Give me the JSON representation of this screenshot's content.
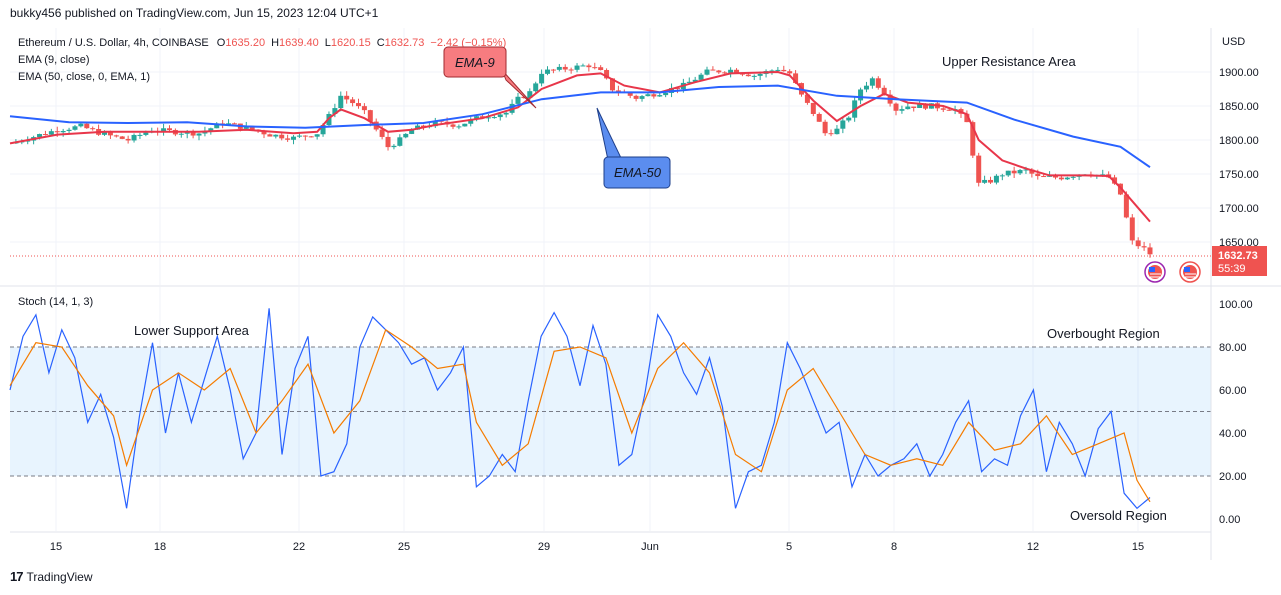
{
  "header": {
    "text": "bukky456 published on TradingView.com, Jun 15, 2023 12:04 UTC+1"
  },
  "legend": {
    "symbol": "Ethereum / U.S. Dollar, 4h, COINBASE",
    "o_label": "O",
    "o": "1635.20",
    "h_label": "H",
    "h": "1639.40",
    "l_label": "L",
    "l": "1620.15",
    "c_label": "C",
    "c": "1632.73",
    "change": "−2.42 (−0.15%)",
    "ema9": "EMA (9, close)",
    "ema50": "EMA (50, close, 0, EMA, 1)",
    "stoch": "Stoch (14, 1, 3)"
  },
  "price_axis": {
    "unit": "USD",
    "ticks": [
      "1900.00",
      "1850.00",
      "1800.00",
      "1750.00",
      "1700.00",
      "1650.00"
    ],
    "last_price": "1632.73",
    "countdown": "55:39"
  },
  "stoch_axis": {
    "ticks": [
      "100.00",
      "80.00",
      "60.00",
      "40.00",
      "20.00",
      "0.00"
    ]
  },
  "time_axis": {
    "labels": [
      "15",
      "18",
      "22",
      "25",
      "29",
      "Jun",
      "5",
      "8",
      "12",
      "15"
    ]
  },
  "annotations": {
    "ema9_callout": "EMA-9",
    "ema50_callout": "EMA-50",
    "upper_resistance": "Upper Resistance Area",
    "lower_support": "Lower Support Area",
    "overbought": "Overbought Region",
    "oversold": "Oversold Region"
  },
  "footer": {
    "brand": "TradingView",
    "logo": "17"
  },
  "colors": {
    "up": "#26a69a",
    "down": "#ef5350",
    "ema9": "#e8364a",
    "ema50": "#2962ff",
    "stoch_k": "#2962ff",
    "stoch_d": "#f57c00"
  },
  "chart_data": [
    {
      "type": "candlestick",
      "title": "Ethereum / U.S. Dollar, 4h, COINBASE",
      "x": [
        "15",
        "18",
        "22",
        "25",
        "29",
        "Jun",
        "5",
        "8",
        "12",
        "15"
      ],
      "ylabel": "USD",
      "ylim": [
        1610,
        1935
      ],
      "close_path": [
        [
          0,
          1795
        ],
        [
          2,
          1805
        ],
        [
          4,
          1815
        ],
        [
          6,
          1820
        ],
        [
          8,
          1808
        ],
        [
          10,
          1800
        ],
        [
          12,
          1815
        ],
        [
          14,
          1812
        ],
        [
          16,
          1810
        ],
        [
          18,
          1825
        ],
        [
          20,
          1818
        ],
        [
          22,
          1808
        ],
        [
          24,
          1803
        ],
        [
          26,
          1810
        ],
        [
          27,
          1835
        ],
        [
          28,
          1865
        ],
        [
          29,
          1855
        ],
        [
          30,
          1840
        ],
        [
          31,
          1815
        ],
        [
          32,
          1790
        ],
        [
          33,
          1800
        ],
        [
          34,
          1815
        ],
        [
          36,
          1825
        ],
        [
          38,
          1822
        ],
        [
          40,
          1835
        ],
        [
          42,
          1840
        ],
        [
          43,
          1860
        ],
        [
          44,
          1870
        ],
        [
          45,
          1900
        ],
        [
          47,
          1905
        ],
        [
          49,
          1910
        ],
        [
          50,
          1900
        ],
        [
          51,
          1875
        ],
        [
          53,
          1862
        ],
        [
          55,
          1870
        ],
        [
          57,
          1880
        ],
        [
          59,
          1900
        ],
        [
          61,
          1903
        ],
        [
          63,
          1895
        ],
        [
          65,
          1905
        ],
        [
          66,
          1898
        ],
        [
          67,
          1865
        ],
        [
          68,
          1840
        ],
        [
          69,
          1810
        ],
        [
          70,
          1815
        ],
        [
          71,
          1835
        ],
        [
          72,
          1875
        ],
        [
          73,
          1890
        ],
        [
          74,
          1870
        ],
        [
          75,
          1845
        ],
        [
          76,
          1850
        ],
        [
          78,
          1850
        ],
        [
          80,
          1845
        ],
        [
          81,
          1825
        ],
        [
          82,
          1735
        ],
        [
          83,
          1740
        ],
        [
          84,
          1750
        ],
        [
          86,
          1755
        ],
        [
          87,
          1745
        ],
        [
          89,
          1745
        ],
        [
          91,
          1752
        ],
        [
          93,
          1745
        ],
        [
          94,
          1720
        ],
        [
          95,
          1650
        ],
        [
          96,
          1640
        ],
        [
          96.5,
          1632.73
        ]
      ],
      "series": [
        {
          "name": "EMA (9, close)",
          "values": [
            [
              0,
              1795
            ],
            [
              4,
              1808
            ],
            [
              8,
              1812
            ],
            [
              12,
              1812
            ],
            [
              16,
              1812
            ],
            [
              20,
              1815
            ],
            [
              24,
              1810
            ],
            [
              26,
              1812
            ],
            [
              27,
              1832
            ],
            [
              28,
              1845
            ],
            [
              30,
              1832
            ],
            [
              32,
              1812
            ],
            [
              34,
              1815
            ],
            [
              36,
              1822
            ],
            [
              40,
              1832
            ],
            [
              43,
              1848
            ],
            [
              45,
              1875
            ],
            [
              48,
              1895
            ],
            [
              50,
              1898
            ],
            [
              52,
              1880
            ],
            [
              55,
              1870
            ],
            [
              58,
              1885
            ],
            [
              61,
              1898
            ],
            [
              65,
              1900
            ],
            [
              66,
              1895
            ],
            [
              68,
              1858
            ],
            [
              70,
              1828
            ],
            [
              72,
              1850
            ],
            [
              74,
              1868
            ],
            [
              76,
              1855
            ],
            [
              79,
              1850
            ],
            [
              81,
              1838
            ],
            [
              82,
              1800
            ],
            [
              84,
              1770
            ],
            [
              86,
              1758
            ],
            [
              88,
              1748
            ],
            [
              91,
              1748
            ],
            [
              93,
              1747
            ],
            [
              94,
              1730
            ],
            [
              96.5,
              1680
            ]
          ]
        },
        {
          "name": "EMA (50, close, 0, EMA, 1)",
          "values": [
            [
              0,
              1835
            ],
            [
              5,
              1826
            ],
            [
              10,
              1825
            ],
            [
              15,
              1826
            ],
            [
              20,
              1820
            ],
            [
              25,
              1818
            ],
            [
              30,
              1822
            ],
            [
              35,
              1825
            ],
            [
              40,
              1838
            ],
            [
              45,
              1860
            ],
            [
              50,
              1870
            ],
            [
              55,
              1870
            ],
            [
              60,
              1878
            ],
            [
              65,
              1880
            ],
            [
              70,
              1865
            ],
            [
              75,
              1860
            ],
            [
              81,
              1855
            ],
            [
              85,
              1830
            ],
            [
              90,
              1805
            ],
            [
              94,
              1790
            ],
            [
              96.5,
              1760
            ]
          ]
        }
      ]
    },
    {
      "type": "line",
      "title": "Stoch (14, 1, 3)",
      "x": [
        "15",
        "18",
        "22",
        "25",
        "29",
        "Jun",
        "5",
        "8",
        "12",
        "15"
      ],
      "ylim": [
        0,
        100
      ],
      "levels": [
        80,
        50,
        20
      ],
      "series": [
        {
          "name": "%K",
          "values": [
            [
              0,
              60
            ],
            [
              1,
              85
            ],
            [
              2,
              95
            ],
            [
              3,
              68
            ],
            [
              4,
              88
            ],
            [
              5,
              75
            ],
            [
              6,
              45
            ],
            [
              7,
              58
            ],
            [
              8,
              38
            ],
            [
              9,
              5
            ],
            [
              10,
              48
            ],
            [
              11,
              82
            ],
            [
              12,
              40
            ],
            [
              13,
              68
            ],
            [
              14,
              45
            ],
            [
              15,
              65
            ],
            [
              16,
              85
            ],
            [
              17,
              60
            ],
            [
              18,
              28
            ],
            [
              19,
              40
            ],
            [
              20,
              98
            ],
            [
              21,
              30
            ],
            [
              22,
              70
            ],
            [
              23,
              85
            ],
            [
              24,
              20
            ],
            [
              25,
              22
            ],
            [
              26,
              35
            ],
            [
              27,
              80
            ],
            [
              28,
              94
            ],
            [
              29,
              88
            ],
            [
              30,
              82
            ],
            [
              31,
              72
            ],
            [
              32,
              75
            ],
            [
              33,
              60
            ],
            [
              34,
              68
            ],
            [
              35,
              80
            ],
            [
              36,
              15
            ],
            [
              37,
              20
            ],
            [
              38,
              30
            ],
            [
              39,
              22
            ],
            [
              40,
              55
            ],
            [
              41,
              85
            ],
            [
              42,
              96
            ],
            [
              43,
              85
            ],
            [
              44,
              62
            ],
            [
              45,
              90
            ],
            [
              46,
              72
            ],
            [
              47,
              25
            ],
            [
              48,
              30
            ],
            [
              49,
              58
            ],
            [
              50,
              95
            ],
            [
              51,
              85
            ],
            [
              52,
              68
            ],
            [
              53,
              58
            ],
            [
              54,
              75
            ],
            [
              55,
              52
            ],
            [
              56,
              5
            ],
            [
              57,
              22
            ],
            [
              58,
              25
            ],
            [
              59,
              45
            ],
            [
              60,
              82
            ],
            [
              61,
              70
            ],
            [
              62,
              55
            ],
            [
              63,
              40
            ],
            [
              64,
              45
            ],
            [
              65,
              15
            ],
            [
              66,
              30
            ],
            [
              67,
              20
            ],
            [
              68,
              25
            ],
            [
              69,
              28
            ],
            [
              70,
              35
            ],
            [
              71,
              20
            ],
            [
              72,
              30
            ],
            [
              73,
              45
            ],
            [
              74,
              55
            ],
            [
              75,
              22
            ],
            [
              76,
              28
            ],
            [
              77,
              25
            ],
            [
              78,
              48
            ],
            [
              79,
              60
            ],
            [
              80,
              22
            ],
            [
              81,
              45
            ],
            [
              82,
              35
            ],
            [
              83,
              20
            ],
            [
              84,
              42
            ],
            [
              85,
              50
            ],
            [
              86,
              12
            ],
            [
              87,
              5
            ],
            [
              88,
              10
            ]
          ]
        },
        {
          "name": "%D",
          "values": [
            [
              0,
              62
            ],
            [
              2,
              82
            ],
            [
              4,
              80
            ],
            [
              6,
              62
            ],
            [
              8,
              48
            ],
            [
              9,
              25
            ],
            [
              11,
              60
            ],
            [
              13,
              68
            ],
            [
              15,
              60
            ],
            [
              17,
              70
            ],
            [
              19,
              40
            ],
            [
              21,
              55
            ],
            [
              23,
              72
            ],
            [
              25,
              40
            ],
            [
              27,
              55
            ],
            [
              29,
              88
            ],
            [
              31,
              80
            ],
            [
              33,
              70
            ],
            [
              35,
              72
            ],
            [
              36,
              45
            ],
            [
              38,
              25
            ],
            [
              40,
              35
            ],
            [
              42,
              78
            ],
            [
              44,
              80
            ],
            [
              46,
              75
            ],
            [
              48,
              40
            ],
            [
              50,
              70
            ],
            [
              52,
              82
            ],
            [
              54,
              68
            ],
            [
              56,
              30
            ],
            [
              58,
              22
            ],
            [
              60,
              60
            ],
            [
              62,
              70
            ],
            [
              64,
              50
            ],
            [
              66,
              30
            ],
            [
              68,
              25
            ],
            [
              70,
              28
            ],
            [
              72,
              25
            ],
            [
              74,
              45
            ],
            [
              76,
              32
            ],
            [
              78,
              35
            ],
            [
              80,
              48
            ],
            [
              82,
              30
            ],
            [
              84,
              35
            ],
            [
              86,
              40
            ],
            [
              87,
              18
            ],
            [
              88,
              8
            ]
          ]
        }
      ]
    }
  ]
}
